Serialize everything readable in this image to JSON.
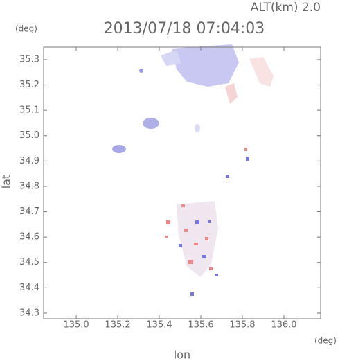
{
  "chart_data": {
    "type": "map",
    "title": "ALT(km) 2.0",
    "subtitle": "2013/07/18 07:04:03",
    "x_label": "lon",
    "y_label": "lat",
    "x_unit": "(deg)",
    "y_unit": "(deg)",
    "xlim": [
      134.843,
      136.177
    ],
    "ylim": [
      34.278,
      35.349
    ],
    "xticks": [
      {
        "value": 135.0,
        "label": "135.0"
      },
      135.2,
      135.4,
      135.6,
      135.8,
      {
        "value": 136.0,
        "label": "136.0"
      }
    ],
    "yticks": [
      34.3,
      34.4,
      34.5,
      34.6,
      34.7,
      34.8,
      34.9,
      {
        "value": 35.0,
        "label": "35.0"
      },
      35.1,
      35.2,
      35.3
    ]
  }
}
